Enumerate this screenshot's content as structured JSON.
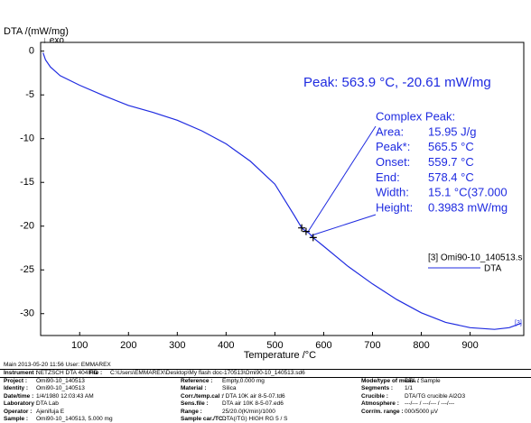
{
  "chart_data": {
    "type": "line",
    "y_axis_label": "DTA /(mW/mg)",
    "exo_label": "↓ exo",
    "x_axis_label": "Temperature /°C",
    "xlim": [
      20,
      1010
    ],
    "xticks": [
      100,
      200,
      300,
      400,
      500,
      600,
      700,
      800,
      900
    ],
    "ylim": [
      -32.5,
      1
    ],
    "yticks": [
      0,
      -5,
      -10,
      -15,
      -20,
      -25,
      -30
    ],
    "series": [
      {
        "name": "DTA",
        "color": "#1f2be0",
        "x": [
          25,
          30,
          40,
          60,
          100,
          150,
          200,
          250,
          300,
          350,
          400,
          450,
          500,
          540,
          555,
          563.9,
          570,
          578,
          600,
          650,
          700,
          750,
          800,
          850,
          900,
          950,
          980,
          1005
        ],
        "values": [
          -0.2,
          -1.0,
          -1.8,
          -2.8,
          -3.9,
          -5.1,
          -6.2,
          -7.0,
          -7.9,
          -9.1,
          -10.6,
          -12.6,
          -15.2,
          -18.8,
          -20.2,
          -20.61,
          -20.8,
          -21.3,
          -22.3,
          -24.6,
          -26.6,
          -28.4,
          -29.9,
          -31.0,
          -31.6,
          -31.8,
          -31.6,
          -31.1
        ]
      }
    ],
    "legend_title": "[3] Omi90-10_140513.s",
    "end_tag": "[3]",
    "markers": {
      "x": [
        555,
        563.9,
        578.4
      ],
      "y": [
        -20.2,
        -20.61,
        -21.3
      ]
    },
    "peak_label": "Peak: 563.9 °C, -20.61 mW/mg",
    "complex_peak": {
      "title": "Complex Peak:",
      "rows": [
        [
          "Area:",
          "15.95 J/g"
        ],
        [
          "Peak*:",
          "565.5 °C"
        ],
        [
          "Onset:",
          "559.7 °C"
        ],
        [
          "End:",
          "578.4 °C"
        ],
        [
          "Width:",
          "15.1 °C(37.000"
        ],
        [
          "Height:",
          "0.3983 mW/mg"
        ]
      ]
    }
  },
  "footer": {
    "main": "Main   2013-05-20 11:56   User: EMMAREX",
    "instrument_label": "Instrument :",
    "instrument": "NETZSCH DTA 404 PC",
    "file_label": "File :",
    "file": "C:\\Users\\EMMAREX\\Desktop\\My flash doc-170513\\Omi90-10_140513.sd6",
    "rows": [
      [
        "Project :",
        "Omi90-10_140513",
        "Reference :",
        "Empty,0.000 mg",
        "Mode/type of meas. :",
        "DTA / Sample"
      ],
      [
        "Identity :",
        "Omi90-10_140513",
        "Material :",
        "Silica",
        "Segments :",
        "1/1"
      ],
      [
        "Date/time :",
        "1/4/1980 12:03:43 AM",
        "Corr./temp.cal :",
        " / DTA 10K air 8-5-07.td6",
        "Crucible :",
        "DTA/TG crucible Al2O3"
      ],
      [
        "Laboratory :",
        "DTA Lab",
        "Sens.file :",
        "DTA air 10K 8-5-07.ed6",
        "Atmosphere :",
        "---/--- / ---/--- / ---/---"
      ],
      [
        "Operator :",
        "Ajenifuja E",
        "Range :",
        "25/20.0(K/min)/1000",
        "Corr/m. range :",
        "000/5000 µV"
      ],
      [
        "Sample :",
        "Omi90-10_140513, 5.000 mg",
        "Sample car./TC :",
        "DTA(/TG) HIGH RG 5 / S",
        "",
        ""
      ]
    ]
  }
}
